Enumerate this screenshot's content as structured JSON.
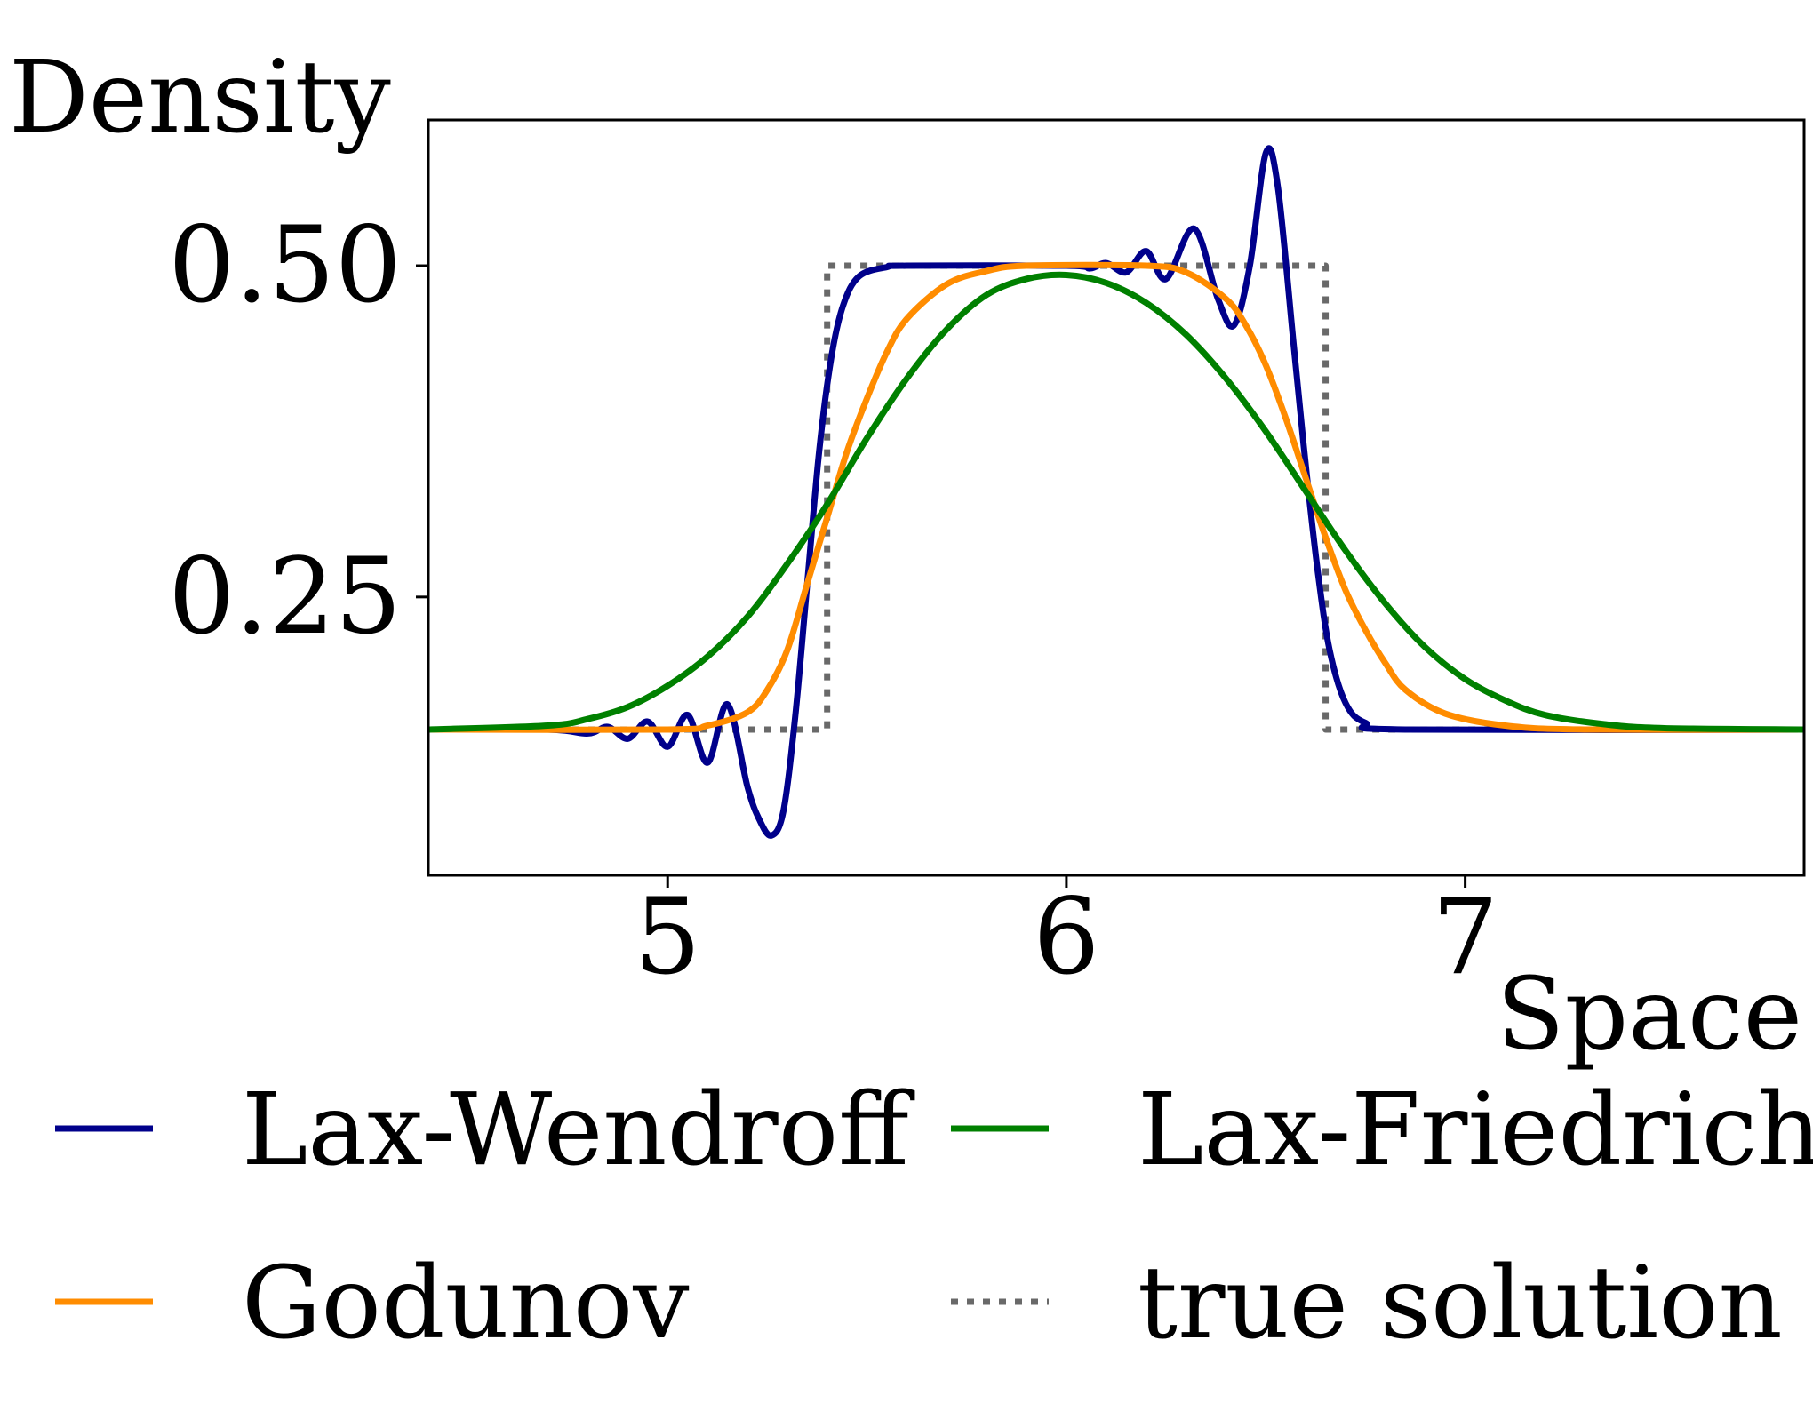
{
  "chart_data": {
    "type": "line",
    "title": "",
    "xlabel": "Space",
    "ylabel": "Density",
    "xlim": [
      4.4,
      7.85
    ],
    "ylim": [
      0.04,
      0.61
    ],
    "xticks": [
      {
        "value": 5,
        "label": "5"
      },
      {
        "value": 6,
        "label": "6"
      },
      {
        "value": 7,
        "label": "7"
      }
    ],
    "yticks": [
      {
        "value": 0.25,
        "label": "0.25"
      },
      {
        "value": 0.5,
        "label": "0.50"
      }
    ],
    "grid": false,
    "legend_position": "below",
    "series": [
      {
        "name": "Lax-Wendroff",
        "color": "#00008b",
        "style": "solid",
        "points": [
          [
            4.4,
            0.15
          ],
          [
            4.7,
            0.15
          ],
          [
            4.8,
            0.147
          ],
          [
            4.85,
            0.152
          ],
          [
            4.9,
            0.143
          ],
          [
            4.95,
            0.156
          ],
          [
            5.0,
            0.137
          ],
          [
            5.05,
            0.161
          ],
          [
            5.1,
            0.125
          ],
          [
            5.15,
            0.169
          ],
          [
            5.2,
            0.107
          ],
          [
            5.23,
            0.082
          ],
          [
            5.26,
            0.07
          ],
          [
            5.29,
            0.088
          ],
          [
            5.32,
            0.16
          ],
          [
            5.35,
            0.26
          ],
          [
            5.38,
            0.36
          ],
          [
            5.41,
            0.43
          ],
          [
            5.44,
            0.47
          ],
          [
            5.48,
            0.492
          ],
          [
            5.55,
            0.499
          ],
          [
            5.6,
            0.5
          ],
          [
            6.0,
            0.5
          ],
          [
            6.06,
            0.498
          ],
          [
            6.1,
            0.502
          ],
          [
            6.15,
            0.495
          ],
          [
            6.2,
            0.511
          ],
          [
            6.25,
            0.49
          ],
          [
            6.32,
            0.528
          ],
          [
            6.38,
            0.475
          ],
          [
            6.42,
            0.455
          ],
          [
            6.46,
            0.5
          ],
          [
            6.5,
            0.585
          ],
          [
            6.53,
            0.56
          ],
          [
            6.57,
            0.44
          ],
          [
            6.6,
            0.35
          ],
          [
            6.63,
            0.27
          ],
          [
            6.66,
            0.21
          ],
          [
            6.7,
            0.17
          ],
          [
            6.75,
            0.155
          ],
          [
            6.85,
            0.15
          ],
          [
            7.85,
            0.15
          ]
        ]
      },
      {
        "name": "Godunov",
        "color": "#ff8c00",
        "style": "solid",
        "points": [
          [
            4.4,
            0.15
          ],
          [
            5.0,
            0.15
          ],
          [
            5.1,
            0.153
          ],
          [
            5.2,
            0.163
          ],
          [
            5.25,
            0.18
          ],
          [
            5.3,
            0.21
          ],
          [
            5.35,
            0.26
          ],
          [
            5.4,
            0.31
          ],
          [
            5.45,
            0.36
          ],
          [
            5.5,
            0.4
          ],
          [
            5.55,
            0.435
          ],
          [
            5.6,
            0.46
          ],
          [
            5.7,
            0.486
          ],
          [
            5.8,
            0.496
          ],
          [
            5.9,
            0.5
          ],
          [
            6.2,
            0.5
          ],
          [
            6.3,
            0.495
          ],
          [
            6.4,
            0.475
          ],
          [
            6.45,
            0.455
          ],
          [
            6.5,
            0.425
          ],
          [
            6.55,
            0.385
          ],
          [
            6.6,
            0.34
          ],
          [
            6.65,
            0.295
          ],
          [
            6.7,
            0.255
          ],
          [
            6.75,
            0.225
          ],
          [
            6.8,
            0.2
          ],
          [
            6.85,
            0.18
          ],
          [
            6.95,
            0.162
          ],
          [
            7.1,
            0.153
          ],
          [
            7.3,
            0.15
          ],
          [
            7.85,
            0.15
          ]
        ]
      },
      {
        "name": "Lax-Friedrichs",
        "color": "#008000",
        "style": "solid",
        "points": [
          [
            4.4,
            0.15
          ],
          [
            4.7,
            0.153
          ],
          [
            4.8,
            0.158
          ],
          [
            4.9,
            0.167
          ],
          [
            5.0,
            0.183
          ],
          [
            5.1,
            0.205
          ],
          [
            5.2,
            0.235
          ],
          [
            5.3,
            0.275
          ],
          [
            5.4,
            0.32
          ],
          [
            5.5,
            0.37
          ],
          [
            5.6,
            0.415
          ],
          [
            5.7,
            0.452
          ],
          [
            5.8,
            0.478
          ],
          [
            5.9,
            0.49
          ],
          [
            6.0,
            0.493
          ],
          [
            6.1,
            0.487
          ],
          [
            6.2,
            0.472
          ],
          [
            6.3,
            0.448
          ],
          [
            6.4,
            0.415
          ],
          [
            6.5,
            0.375
          ],
          [
            6.6,
            0.33
          ],
          [
            6.7,
            0.285
          ],
          [
            6.8,
            0.245
          ],
          [
            6.9,
            0.212
          ],
          [
            7.0,
            0.188
          ],
          [
            7.1,
            0.172
          ],
          [
            7.2,
            0.161
          ],
          [
            7.35,
            0.154
          ],
          [
            7.5,
            0.151
          ],
          [
            7.85,
            0.15
          ]
        ]
      },
      {
        "name": "true solution",
        "color": "#696969",
        "style": "dotted",
        "points": [
          [
            4.4,
            0.15
          ],
          [
            5.4,
            0.15
          ],
          [
            5.4,
            0.5
          ],
          [
            6.65,
            0.5
          ],
          [
            6.65,
            0.15
          ],
          [
            7.85,
            0.15
          ]
        ]
      }
    ]
  }
}
